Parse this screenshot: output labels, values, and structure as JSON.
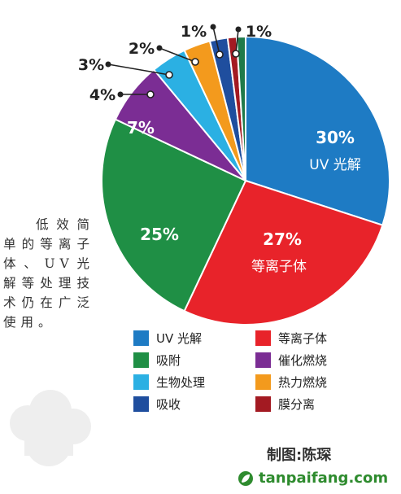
{
  "chart_data": {
    "type": "pie",
    "slices": [
      {
        "label": "UV 光解",
        "value": 30,
        "value_label": "30%",
        "color": "#1e7bc4"
      },
      {
        "label": "等离子体",
        "value": 27,
        "value_label": "27%",
        "color": "#e8232a"
      },
      {
        "label": "吸附",
        "value": 25,
        "value_label": "25%",
        "color": "#1f8f45"
      },
      {
        "label": "催化燃烧",
        "value": 7,
        "value_label": "7%",
        "color": "#7b2d94"
      },
      {
        "label": "生物处理",
        "value": 4,
        "value_label": "4%",
        "color": "#2bb0e3"
      },
      {
        "label": "热力燃烧",
        "value": 3,
        "value_label": "3%",
        "color": "#f39a1d"
      },
      {
        "label": "吸收",
        "value": 2,
        "value_label": "2%",
        "color": "#1f4e9e"
      },
      {
        "label": "膜分离",
        "value": 1,
        "value_label": "1%",
        "color": "#a31a22"
      },
      {
        "label": "",
        "value": 1,
        "value_label": "1%",
        "color": "#1f7a4a"
      }
    ],
    "inside_labels": {
      "UV 光解": "UV 光解",
      "等离子体": "等离子体"
    },
    "legend": [
      "UV 光解",
      "等离子体",
      "吸附",
      "催化燃烧",
      "生物处理",
      "热力燃烧",
      "吸收",
      "膜分离"
    ]
  },
  "caption": "低效简单的等离子体、UV光解等处理技术仍在广泛使用。",
  "credit": "制图:陈琛",
  "brand": "tanpaifang.com",
  "brand_color": "#2e8b2e"
}
